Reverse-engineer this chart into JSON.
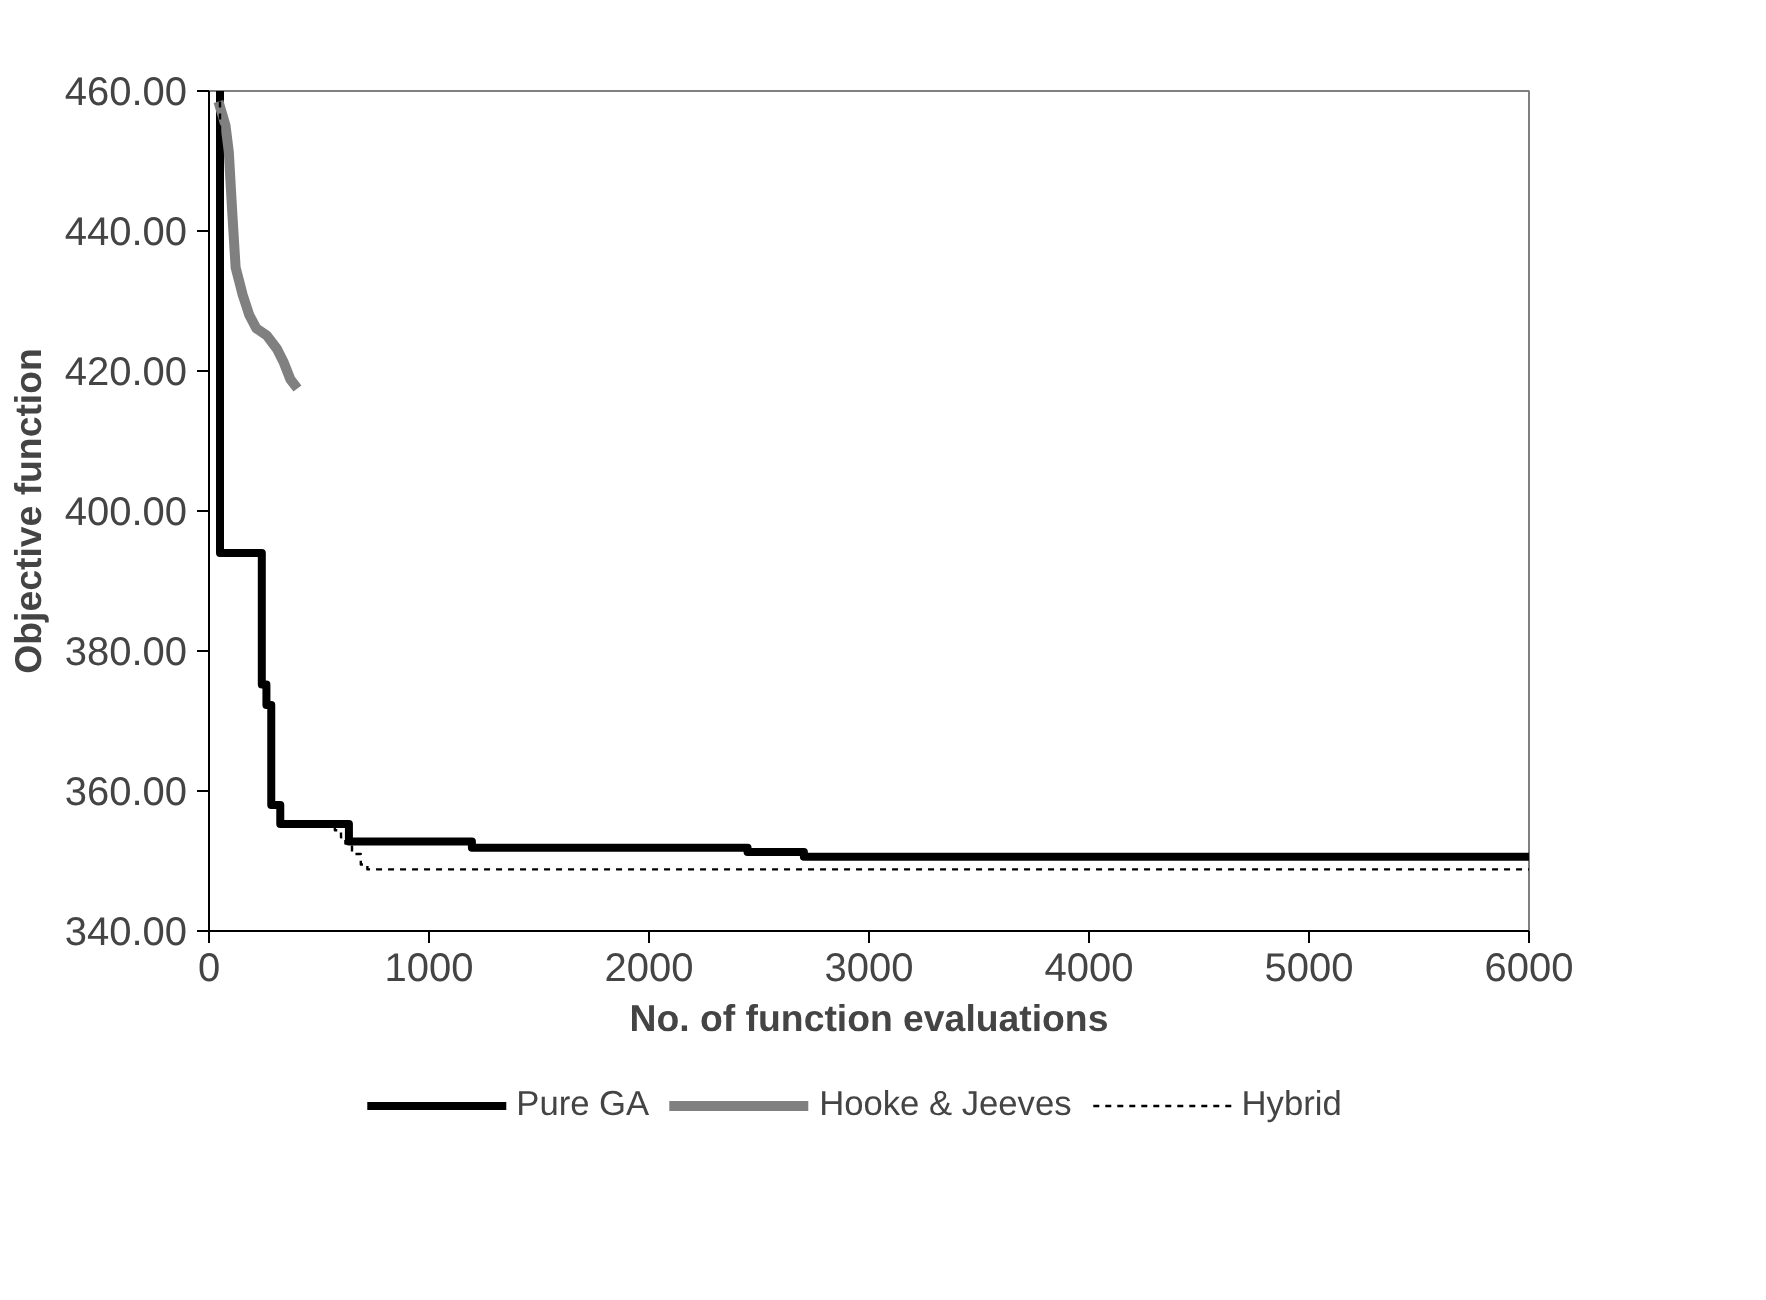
{
  "chart_data": {
    "type": "step",
    "xlabel": "No. of function evaluations",
    "ylabel": "Objective function",
    "xlim": [
      0,
      6000
    ],
    "xticks": [
      0,
      1000,
      2000,
      3000,
      4000,
      5000,
      6000
    ],
    "ylim": [
      340,
      460
    ],
    "yticks": [
      {
        "value": 340,
        "label": "340.00"
      },
      {
        "value": 360,
        "label": "360.00"
      },
      {
        "value": 380,
        "label": "380.00"
      },
      {
        "value": 400,
        "label": "400.00"
      },
      {
        "value": 420,
        "label": "420.00"
      },
      {
        "value": 440,
        "label": "440.00"
      },
      {
        "value": 460,
        "label": "460.00"
      }
    ],
    "grid": false,
    "legend": "bottom",
    "series": [
      {
        "name": "Pure GA",
        "color": "#000000",
        "line_style": "solid",
        "x": [
          43,
          50,
          240,
          261,
          283,
          324,
          636,
          1195,
          2448,
          2704,
          6000
        ],
        "values": [
          460,
          394,
          375.2,
          372.3,
          358,
          355.3,
          352.8,
          351.9,
          351.3,
          350.6,
          350.6
        ]
      },
      {
        "name": "Hooke & Jeeves",
        "type": "line",
        "color": "#808080",
        "line_style": "solid",
        "x": [
          43,
          75,
          90,
          106,
          121,
          153,
          183,
          215,
          262,
          308,
          340,
          370,
          402
        ],
        "values": [
          458.5,
          455.1,
          451.3,
          442.5,
          434.8,
          430.9,
          428,
          426.1,
          425.1,
          423.2,
          421.2,
          418.8,
          417.5
        ]
      },
      {
        "name": "Hybrid",
        "color": "#000000",
        "line_style": "dotted",
        "x": [
          43,
          50,
          240,
          261,
          283,
          324,
          572,
          600,
          620,
          650,
          690,
          720,
          6000
        ],
        "values": [
          460,
          394,
          375.2,
          372.3,
          358,
          355.3,
          354.4,
          353.4,
          352.5,
          351,
          349.5,
          348.8,
          348.8
        ]
      }
    ]
  }
}
